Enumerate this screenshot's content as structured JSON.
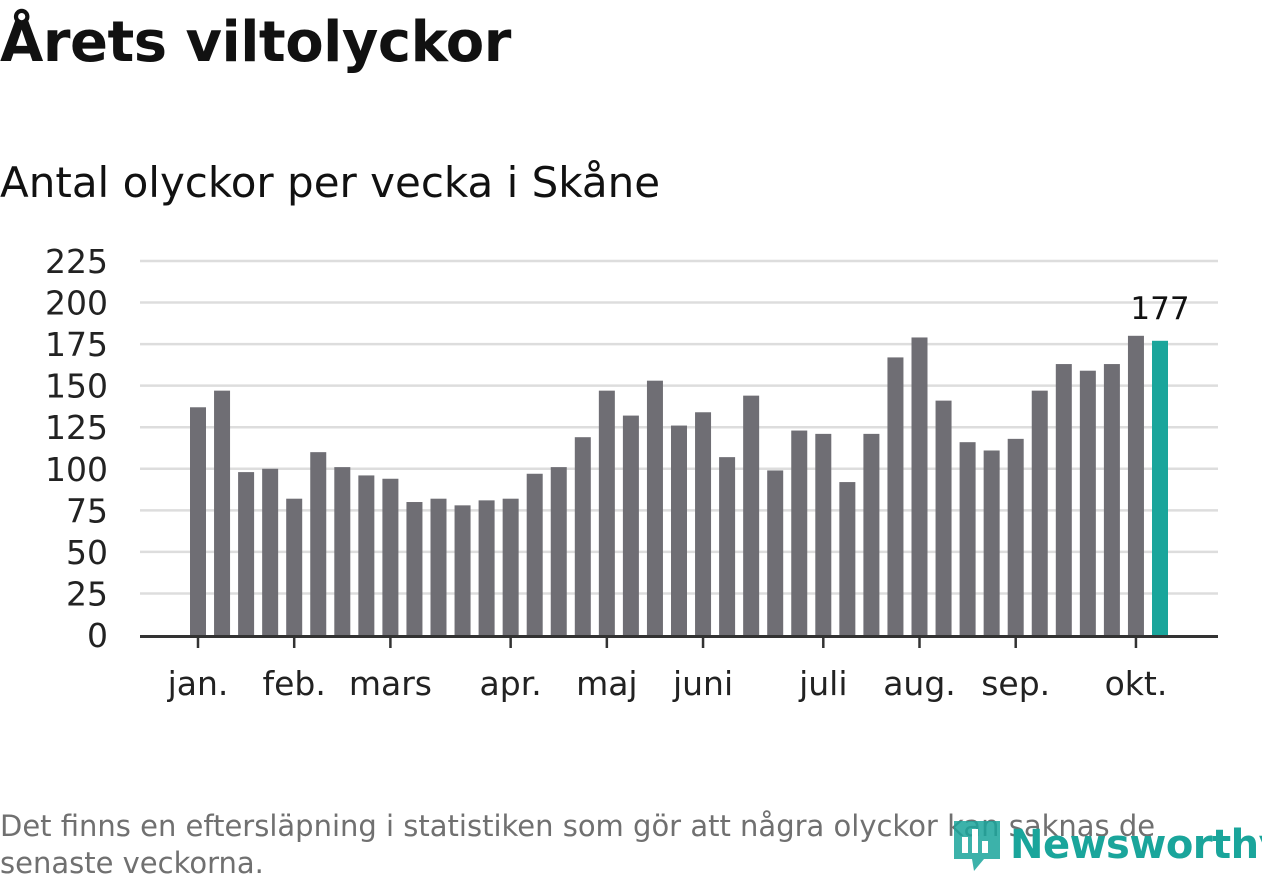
{
  "header": {
    "title": "Årets viltolyckor",
    "subtitle": "Antal olyckor per vecka i Skåne"
  },
  "footer": {
    "note": "Det finns en eftersläpning i statistiken som gör att några olyckor kan saknas de senaste veckorna.",
    "brand": "Newsworthy"
  },
  "colors": {
    "bar": "#6f6e74",
    "highlight": "#1aa59b",
    "grid": "#dddddd",
    "axis": "#333333"
  },
  "chart_data": {
    "type": "bar",
    "title": "Antal olyckor per vecka i Skåne",
    "ylim": [
      0,
      225
    ],
    "yticks": [
      0,
      25,
      50,
      75,
      100,
      125,
      150,
      175,
      200,
      225
    ],
    "grid": true,
    "values": [
      137,
      147,
      98,
      100,
      82,
      110,
      101,
      96,
      94,
      80,
      82,
      78,
      81,
      82,
      97,
      101,
      119,
      147,
      132,
      153,
      126,
      134,
      107,
      144,
      99,
      123,
      121,
      92,
      121,
      167,
      179,
      141,
      116,
      111,
      118,
      147,
      163,
      159,
      163,
      180,
      177
    ],
    "highlight_index": 40,
    "highlight_label": "177",
    "month_labels": [
      {
        "label": "jan.",
        "bar": 0
      },
      {
        "label": "feb.",
        "bar": 4
      },
      {
        "label": "mars",
        "bar": 8
      },
      {
        "label": "apr.",
        "bar": 13
      },
      {
        "label": "maj",
        "bar": 17
      },
      {
        "label": "juni",
        "bar": 21
      },
      {
        "label": "juli",
        "bar": 26
      },
      {
        "label": "aug.",
        "bar": 30
      },
      {
        "label": "sep.",
        "bar": 34
      },
      {
        "label": "okt.",
        "bar": 39
      }
    ]
  }
}
